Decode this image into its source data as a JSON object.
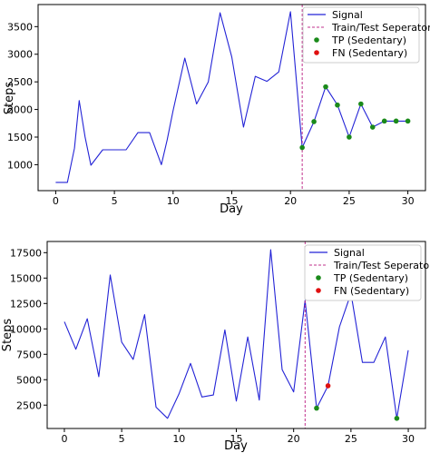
{
  "chart_data": [
    {
      "type": "line",
      "xlabel": "Day",
      "ylabel": "Steps",
      "xlim": [
        -1.5,
        31.5
      ],
      "ylim": [
        530,
        3900
      ],
      "xticks": [
        0,
        5,
        10,
        15,
        20,
        25,
        30
      ],
      "yticks": [
        1000,
        1500,
        2000,
        2500,
        3000,
        3500
      ],
      "split_x": 21,
      "legend_position": "top-right",
      "colors": {
        "signal": "#2323d6",
        "split": "#c0308c",
        "tp": "#1a8a1a",
        "fn": "#e01010"
      },
      "series": [
        {
          "name": "Signal",
          "x": [
            0,
            1,
            1.6,
            2,
            2.5,
            3,
            3.5,
            4,
            5,
            6,
            7,
            8,
            9,
            9.5,
            10,
            11,
            12,
            13,
            14,
            15,
            16,
            17,
            18,
            19,
            20,
            21,
            22,
            23,
            24,
            25,
            26,
            27,
            28,
            29,
            30
          ],
          "y": [
            680,
            680,
            1300,
            2160,
            1500,
            990,
            1130,
            1270,
            1270,
            1270,
            1580,
            1580,
            1000,
            1450,
            1980,
            2930,
            2100,
            2500,
            3750,
            2950,
            1680,
            2600,
            2510,
            2680,
            3770,
            1310,
            1780,
            2410,
            2080,
            1500,
            2100,
            1680,
            1790,
            1790,
            1790
          ]
        }
      ],
      "markers": [
        {
          "name": "TP (Sedentary)",
          "x": [
            21,
            22,
            23,
            24,
            25,
            26,
            27,
            28,
            29,
            30
          ],
          "y": [
            1310,
            1780,
            2410,
            2080,
            1500,
            2100,
            1680,
            1790,
            1790,
            1790
          ]
        },
        {
          "name": "FN (Sedentary)",
          "x": [],
          "y": []
        }
      ],
      "legend": [
        "Signal",
        "Train/Test Seperator",
        "TP (Sedentary)",
        "FN (Sedentary)"
      ]
    },
    {
      "type": "line",
      "xlabel": "Day",
      "ylabel": "Steps",
      "xlim": [
        -1.5,
        31.5
      ],
      "ylim": [
        200,
        18600
      ],
      "xticks": [
        0,
        5,
        10,
        15,
        20,
        25,
        30
      ],
      "yticks": [
        2500,
        5000,
        7500,
        10000,
        12500,
        15000,
        17500
      ],
      "split_x": 21,
      "legend_position": "top-right",
      "colors": {
        "signal": "#2323d6",
        "split": "#c0308c",
        "tp": "#1a8a1a",
        "fn": "#e01010"
      },
      "series": [
        {
          "name": "Signal",
          "x": [
            0,
            1,
            2,
            3,
            4,
            5,
            6,
            7,
            8,
            9,
            10,
            11,
            12,
            13,
            14,
            15,
            16,
            17,
            18,
            19,
            20,
            21,
            22,
            23,
            24,
            25,
            26,
            27,
            28,
            29,
            30
          ],
          "y": [
            10700,
            8000,
            11000,
            5300,
            15300,
            8700,
            7000,
            11400,
            2300,
            1200,
            3600,
            6600,
            3300,
            3500,
            9900,
            2900,
            9200,
            3000,
            17800,
            6000,
            3800,
            12800,
            2200,
            4400,
            10200,
            13500,
            6700,
            6700,
            9200,
            1200,
            7900
          ]
        }
      ],
      "markers": [
        {
          "name": "TP (Sedentary)",
          "x": [
            22,
            29
          ],
          "y": [
            2200,
            1200
          ]
        },
        {
          "name": "FN (Sedentary)",
          "x": [
            23
          ],
          "y": [
            4400
          ]
        }
      ],
      "legend": [
        "Signal",
        "Train/Test Seperator",
        "TP (Sedentary)",
        "FN (Sedentary)"
      ]
    }
  ]
}
